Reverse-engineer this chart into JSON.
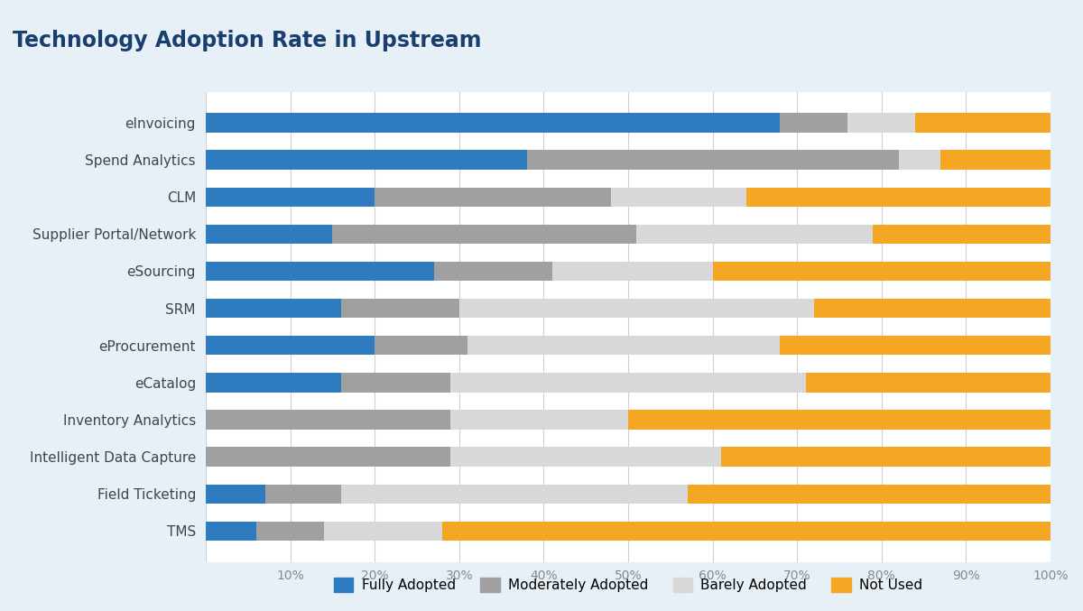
{
  "title": "Technology Adoption Rate in Upstream",
  "categories": [
    "eInvoicing",
    "Spend Analytics",
    "CLM",
    "Supplier Portal/Network",
    "eSourcing",
    "SRM",
    "eProcurement",
    "eCatalog",
    "Inventory Analytics",
    "Intelligent Data Capture",
    "Field Ticketing",
    "TMS"
  ],
  "fully_adopted": [
    68,
    38,
    20,
    15,
    27,
    16,
    20,
    16,
    0,
    0,
    7,
    6
  ],
  "moderately_adopted": [
    8,
    44,
    28,
    36,
    14,
    14,
    11,
    13,
    29,
    29,
    9,
    8
  ],
  "barely_adopted": [
    8,
    5,
    16,
    28,
    19,
    42,
    37,
    42,
    21,
    32,
    41,
    14
  ],
  "not_used": [
    16,
    13,
    36,
    21,
    40,
    28,
    32,
    29,
    50,
    39,
    43,
    72
  ],
  "colors": {
    "fully_adopted": "#2e7bbf",
    "moderately_adopted": "#a0a0a0",
    "barely_adopted": "#d8d8d8",
    "not_used": "#f5a623"
  },
  "legend_labels": [
    "Fully Adopted",
    "Moderately Adopted",
    "Barely Adopted",
    "Not Used"
  ],
  "background_color": "#e8f0f7",
  "plot_bg_color": "#ffffff",
  "title_bg_color": "#cddff0",
  "title_color": "#1a3f6f",
  "tick_color": "#888888",
  "label_color": "#444444"
}
